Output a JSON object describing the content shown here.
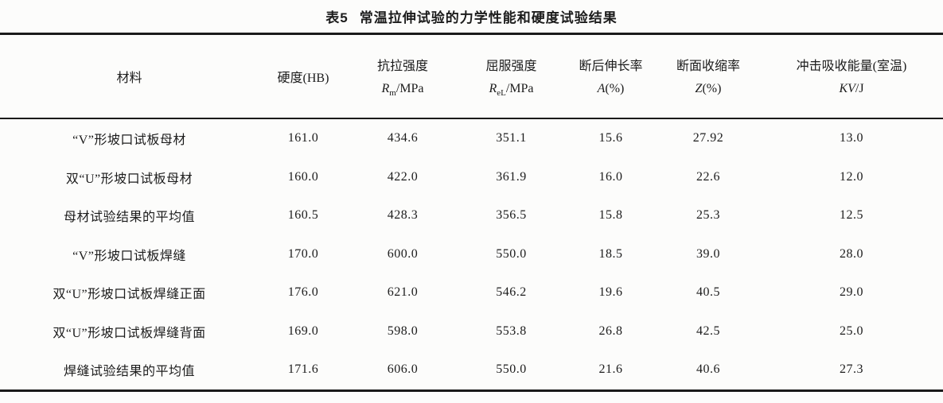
{
  "page": {
    "background_color": "#fcfcfb",
    "text_color": "#1c1c1c",
    "rule_color": "#1a1a1a"
  },
  "title": {
    "label": "表5",
    "text": "常温拉伸试验的力学性能和硬度试验结果"
  },
  "table": {
    "columns": [
      {
        "label": "材料"
      },
      {
        "label": "硬度(HB)"
      },
      {
        "line1": "抗拉强度",
        "symbol": "R",
        "sub": "m",
        "rest": "/MPa"
      },
      {
        "line1": "屈服强度",
        "symbol": "R",
        "sub": "eL",
        "rest": "/MPa"
      },
      {
        "line1": "断后伸长率",
        "symbol": "A",
        "sub": "",
        "rest": "(%)"
      },
      {
        "line1": "断面收缩率",
        "symbol": "Z",
        "sub": "",
        "rest": "(%)"
      },
      {
        "line1": "冲击吸收能量(室温)",
        "symbol": "KV",
        "sub": "",
        "rest": "/J"
      }
    ],
    "rows": [
      {
        "material": "“V”形坡口试板母材",
        "values": [
          "161.0",
          "434.6",
          "351.1",
          "15.6",
          "27.92",
          "13.0"
        ]
      },
      {
        "material": "双“U”形坡口试板母材",
        "values": [
          "160.0",
          "422.0",
          "361.9",
          "16.0",
          "22.6",
          "12.0"
        ]
      },
      {
        "material": "母材试验结果的平均值",
        "values": [
          "160.5",
          "428.3",
          "356.5",
          "15.8",
          "25.3",
          "12.5"
        ]
      },
      {
        "material": "“V”形坡口试板焊缝",
        "values": [
          "170.0",
          "600.0",
          "550.0",
          "18.5",
          "39.0",
          "28.0"
        ]
      },
      {
        "material": "双“U”形坡口试板焊缝正面",
        "values": [
          "176.0",
          "621.0",
          "546.2",
          "19.6",
          "40.5",
          "29.0"
        ]
      },
      {
        "material": "双“U”形坡口试板焊缝背面",
        "values": [
          "169.0",
          "598.0",
          "553.8",
          "26.8",
          "42.5",
          "25.0"
        ]
      },
      {
        "material": "焊缝试验结果的平均值",
        "values": [
          "171.6",
          "606.0",
          "550.0",
          "21.6",
          "40.6",
          "27.3"
        ]
      }
    ]
  }
}
